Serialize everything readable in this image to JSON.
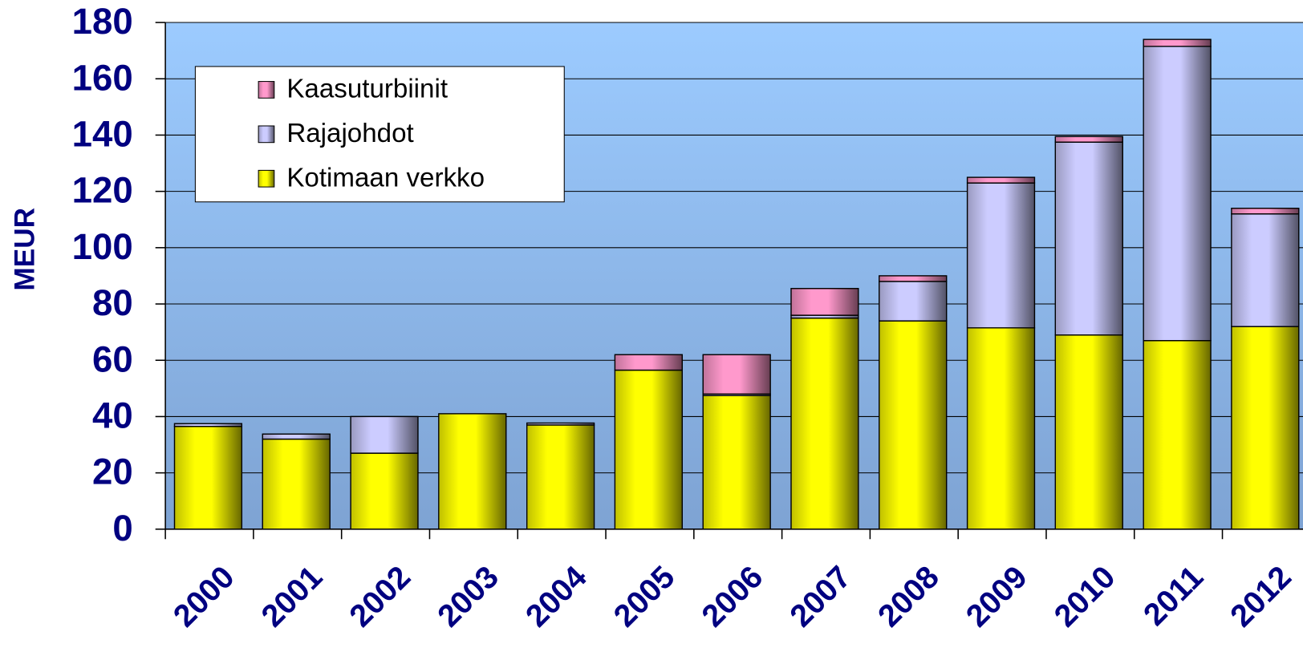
{
  "chart_data": {
    "type": "stacked_bar",
    "y_label": "MEUR",
    "categories": [
      "2000",
      "2001",
      "2002",
      "2003",
      "2004",
      "2005",
      "2006",
      "2007",
      "2008",
      "2009",
      "2010",
      "2011",
      "2012"
    ],
    "series": [
      {
        "name": "Kotimaan verkko",
        "color": "#ffff00",
        "values": [
          36.5,
          32,
          27,
          41,
          37,
          56.5,
          47.5,
          75,
          74,
          71.5,
          69,
          67,
          72
        ]
      },
      {
        "name": "Rajajohdot",
        "color": "#ccccff",
        "values": [
          1,
          1.8,
          13,
          0,
          0.7,
          0,
          0.5,
          1,
          14,
          51.5,
          68.5,
          104.5,
          40
        ]
      },
      {
        "name": "Kaasuturbiinit",
        "color": "#ff99cc",
        "values": [
          0,
          0,
          0,
          0,
          0,
          5.5,
          14,
          9.5,
          2,
          2,
          2,
          2.5,
          2
        ]
      }
    ],
    "ylim": [
      0,
      180
    ],
    "yticks": [
      0,
      20,
      40,
      60,
      80,
      100,
      120,
      140,
      160,
      180
    ],
    "grid": true,
    "legend": "upper left"
  }
}
